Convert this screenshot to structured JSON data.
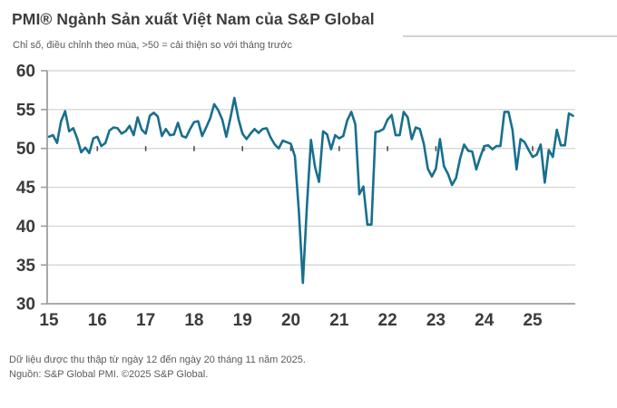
{
  "header": {
    "title": "PMI® Ngành Sản xuất Việt Nam của S&P Global",
    "subtitle": "Chỉ số, điều chỉnh theo mùa, >50 = cải thiện so với tháng trước"
  },
  "footer": {
    "note": "Dữ liệu được thu thập từ ngày 12 đến ngày 20 tháng 11 năm 2025.",
    "source": "Nguồn: S&P Global PMI. ©2025 S&P Global."
  },
  "chart_data": {
    "type": "line",
    "title": "PMI® Ngành Sản xuất Việt Nam của S&P Global",
    "xlabel": "",
    "ylabel": "",
    "ylim": [
      30,
      60
    ],
    "y_ticks": [
      30,
      35,
      40,
      45,
      50,
      55,
      60
    ],
    "x_tick_labels": [
      "15",
      "16",
      "17",
      "18",
      "19",
      "20",
      "21",
      "22",
      "23",
      "24",
      "25"
    ],
    "x_range": "Jan 2015 - Nov 2025, monthly",
    "reference_level": 50,
    "grid": true,
    "legend_position": "none",
    "line_color": "#186f8e",
    "axis_color": "#9e9e9e",
    "grid_color": "#d8d8d8",
    "tick_label_color": "#3b3b3b",
    "reference_tick_color": "#4d4d4d",
    "series": [
      {
        "name": "PMI Ngành Sản xuất Việt Nam",
        "start": "2015-01",
        "end": "2025-11",
        "values": [
          51.5,
          51.7,
          50.7,
          53.5,
          54.8,
          52.2,
          52.6,
          51.3,
          49.5,
          50.1,
          49.4,
          51.3,
          51.5,
          50.3,
          50.7,
          52.3,
          52.7,
          52.6,
          51.9,
          52.2,
          52.9,
          51.7,
          54.0,
          52.4,
          51.9,
          54.2,
          54.6,
          54.1,
          51.6,
          52.5,
          51.7,
          51.8,
          53.3,
          51.6,
          51.4,
          52.5,
          53.4,
          53.5,
          51.6,
          52.7,
          53.9,
          55.7,
          54.9,
          53.7,
          51.5,
          53.9,
          56.5,
          53.8,
          51.9,
          51.2,
          51.9,
          52.5,
          52.0,
          52.5,
          52.6,
          51.4,
          50.5,
          50.0,
          51.0,
          50.8,
          50.6,
          49.0,
          41.9,
          32.7,
          42.7,
          51.1,
          47.6,
          45.7,
          52.2,
          51.8,
          49.9,
          51.7,
          51.3,
          51.6,
          53.6,
          54.7,
          53.1,
          44.1,
          45.1,
          40.2,
          40.2,
          52.1,
          52.2,
          52.5,
          53.7,
          54.3,
          51.7,
          51.7,
          54.7,
          54.0,
          51.2,
          52.7,
          52.5,
          50.6,
          47.4,
          46.4,
          47.4,
          51.2,
          47.7,
          46.7,
          45.3,
          46.2,
          48.7,
          50.5,
          49.7,
          49.6,
          47.3,
          48.9,
          50.3,
          50.4,
          49.9,
          50.3,
          50.3,
          54.7,
          54.7,
          52.4,
          47.3,
          51.2,
          50.8,
          49.8,
          48.9,
          49.2,
          50.5,
          45.6,
          49.8,
          48.9,
          52.4,
          50.4,
          50.4,
          54.5,
          54.2
        ]
      }
    ]
  }
}
